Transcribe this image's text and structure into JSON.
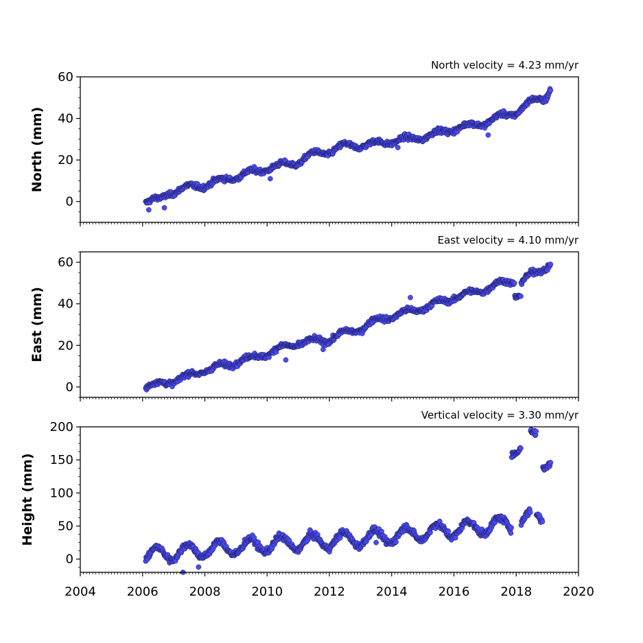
{
  "chart_data": [
    {
      "type": "scatter",
      "title": "North velocity = 4.23 mm/yr",
      "ylabel": "North (mm)",
      "xlim": [
        2004,
        2020
      ],
      "ylim": [
        -10,
        60
      ],
      "yticks": [
        "0",
        "20",
        "40",
        "60"
      ],
      "marker_color": "#4b4bf5",
      "edge_color": "#1a1a4d",
      "x_start": 2006.1,
      "x_end": 2019.1,
      "trend_points": [
        [
          2006.1,
          0
        ],
        [
          2006.6,
          1
        ],
        [
          2006.8,
          4
        ],
        [
          2007.5,
          7
        ],
        [
          2008.0,
          8
        ],
        [
          2009.0,
          12
        ],
        [
          2010.0,
          16
        ],
        [
          2011.0,
          19
        ],
        [
          2011.5,
          23
        ],
        [
          2012.0,
          24
        ],
        [
          2012.5,
          27
        ],
        [
          2013.0,
          27
        ],
        [
          2014.0,
          29
        ],
        [
          2015.0,
          31
        ],
        [
          2016.0,
          35
        ],
        [
          2017.0,
          38
        ],
        [
          2017.5,
          41
        ],
        [
          2018.0,
          43
        ],
        [
          2018.5,
          48
        ],
        [
          2019.0,
          51
        ],
        [
          2019.1,
          55
        ]
      ],
      "offsets": [],
      "outliers": [
        [
          2006.2,
          -4
        ],
        [
          2006.7,
          -3
        ],
        [
          2010.1,
          11
        ],
        [
          2014.2,
          26
        ],
        [
          2017.1,
          32
        ]
      ]
    },
    {
      "type": "scatter",
      "title": "East velocity = 4.10 mm/yr",
      "ylabel": "East (mm)",
      "xlim": [
        2004,
        2020
      ],
      "ylim": [
        -5,
        65
      ],
      "yticks": [
        "0",
        "20",
        "40",
        "60"
      ],
      "marker_color": "#4b4bf5",
      "edge_color": "#1a1a4d",
      "x_start": 2006.1,
      "x_end": 2019.1,
      "trend_points": [
        [
          2006.1,
          0
        ],
        [
          2007.0,
          3
        ],
        [
          2008.0,
          8
        ],
        [
          2009.0,
          12
        ],
        [
          2010.0,
          16
        ],
        [
          2010.5,
          19
        ],
        [
          2011.0,
          21
        ],
        [
          2011.5,
          22
        ],
        [
          2012.0,
          23
        ],
        [
          2012.5,
          26
        ],
        [
          2013.0,
          28
        ],
        [
          2013.5,
          32
        ],
        [
          2014.0,
          34
        ],
        [
          2015.0,
          38
        ],
        [
          2016.0,
          43
        ],
        [
          2017.0,
          47
        ],
        [
          2017.5,
          50
        ],
        [
          2017.9,
          51
        ],
        [
          2018.1,
          50
        ],
        [
          2018.5,
          54
        ],
        [
          2019.0,
          58
        ],
        [
          2019.1,
          60
        ]
      ],
      "offsets": [
        {
          "x0": 2017.95,
          "x1": 2018.15,
          "dy": -6
        }
      ],
      "outliers": [
        [
          2010.6,
          13
        ],
        [
          2011.8,
          18
        ],
        [
          2014.6,
          43
        ]
      ]
    },
    {
      "type": "scatter",
      "title": "Vertical velocity = 3.30 mm/yr",
      "ylabel": "Height (mm)",
      "xlim": [
        2004,
        2020
      ],
      "ylim": [
        -20,
        200
      ],
      "yticks": [
        "0",
        "50",
        "100",
        "150",
        "200"
      ],
      "xticks": [
        "2004",
        "2006",
        "2008",
        "2010",
        "2012",
        "2014",
        "2016",
        "2018",
        "2020"
      ],
      "marker_color": "#4b4bf5",
      "edge_color": "#1a1a4d",
      "x_start": 2006.1,
      "x_end": 2019.1,
      "trend_points": [
        [
          2006.1,
          5
        ],
        [
          2007.0,
          10
        ],
        [
          2008.0,
          14
        ],
        [
          2009.0,
          18
        ],
        [
          2010.0,
          22
        ],
        [
          2011.0,
          25
        ],
        [
          2012.0,
          28
        ],
        [
          2013.0,
          31
        ],
        [
          2014.0,
          35
        ],
        [
          2015.0,
          40
        ],
        [
          2016.0,
          45
        ],
        [
          2017.0,
          49
        ],
        [
          2018.0,
          55
        ],
        [
          2018.5,
          63
        ],
        [
          2019.0,
          70
        ],
        [
          2019.1,
          72
        ]
      ],
      "offsets": [
        {
          "x0": 2017.85,
          "x1": 2018.15,
          "dy": 115
        },
        {
          "x0": 2018.45,
          "x1": 2018.65,
          "dy": 120
        },
        {
          "x0": 2018.85,
          "x1": 2019.15,
          "dy": 80
        }
      ],
      "outliers": [
        [
          2007.3,
          -20
        ],
        [
          2007.8,
          -12
        ],
        [
          2013.5,
          25
        ]
      ]
    }
  ]
}
